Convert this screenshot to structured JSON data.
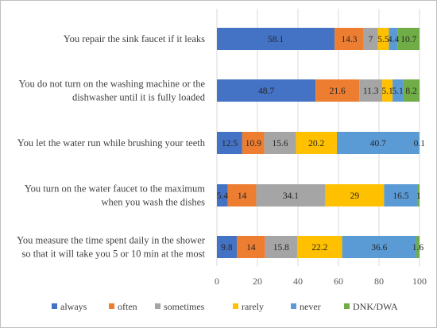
{
  "chart_data": {
    "type": "bar",
    "orientation": "horizontal",
    "stacked": true,
    "categories": [
      [
        "You repair the sink faucet if it leaks"
      ],
      [
        "You do not turn on the washing machine or the",
        "dishwasher until it is fully loaded"
      ],
      [
        "You let the water run while  brushing your teeth"
      ],
      [
        "You turn on the water faucet to the maximum",
        "when you wash the dishes"
      ],
      [
        "You measure the time spent daily in the shower",
        "so that it will take you 5 or 10 min at the most"
      ]
    ],
    "series": [
      {
        "name": "always",
        "color": "#4472c4",
        "values": [
          58.1,
          48.7,
          12.5,
          5.4,
          9.8
        ]
      },
      {
        "name": "often",
        "color": "#ed7d31",
        "values": [
          14.3,
          21.6,
          10.9,
          14,
          14
        ]
      },
      {
        "name": "sometimes",
        "color": "#a5a5a5",
        "values": [
          7,
          11.3,
          15.6,
          34.1,
          15.8
        ]
      },
      {
        "name": "rarely",
        "color": "#ffc000",
        "values": [
          5.5,
          5.1,
          20.2,
          29,
          22.2
        ]
      },
      {
        "name": "never",
        "color": "#5b9bd5",
        "values": [
          4.4,
          5.1,
          40.7,
          16.5,
          36.6
        ]
      },
      {
        "name": "DNK/DWA",
        "color": "#70ad47",
        "values": [
          10.7,
          8.2,
          0.1,
          1,
          1.6
        ]
      }
    ],
    "xlim": [
      0,
      100
    ],
    "xticks": [
      0,
      20,
      40,
      60,
      80,
      100
    ],
    "grid": true,
    "legend": "bottom"
  }
}
